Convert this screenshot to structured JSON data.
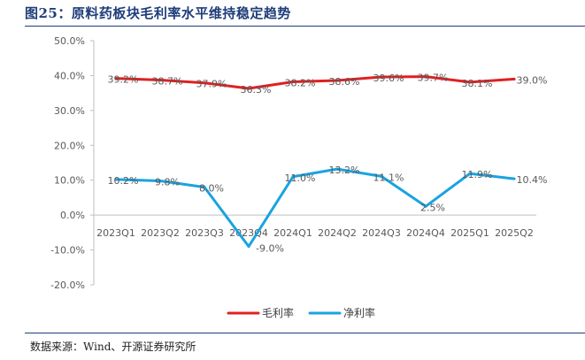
{
  "title": "图25：原料药板块毛利率水平维持稳定趋势",
  "source": "数据来源：Wind、开源证券研究所",
  "chart_data": {
    "type": "line",
    "categories": [
      "2023Q1",
      "2023Q2",
      "2023Q3",
      "2023Q4",
      "2024Q1",
      "2024Q2",
      "2024Q3",
      "2024Q4",
      "2025Q1",
      "2025Q2"
    ],
    "series": [
      {
        "name": "毛利率",
        "color": "#e02020",
        "values": [
          39.2,
          38.7,
          37.9,
          36.3,
          38.2,
          38.6,
          39.6,
          39.7,
          38.1,
          39.0
        ],
        "labels": [
          "39.2%",
          "38.7%",
          "37.9%",
          "36.3%",
          "38.2%",
          "38.6%",
          "39.6%",
          "39.7%",
          "38.1%",
          "39.0%"
        ]
      },
      {
        "name": "净利率",
        "color": "#1aa3e0",
        "values": [
          10.2,
          9.8,
          8.0,
          -9.0,
          11.0,
          13.2,
          11.1,
          2.5,
          11.9,
          10.4
        ],
        "labels": [
          "10.2%",
          "9.8%",
          "8.0%",
          "-9.0%",
          "11.0%",
          "13.2%",
          "11.1%",
          "2.5%",
          "11.9%",
          "10.4%"
        ]
      }
    ],
    "ylim": [
      -20,
      50
    ],
    "yticks": [
      -20,
      -10,
      0,
      10,
      20,
      30,
      40,
      50
    ],
    "ytick_labels": [
      "-20.0%",
      "-10.0%",
      "0.0%",
      "10.0%",
      "20.0%",
      "30.0%",
      "40.0%",
      "50.0%"
    ],
    "legend": "bottom-center",
    "grid": false
  }
}
